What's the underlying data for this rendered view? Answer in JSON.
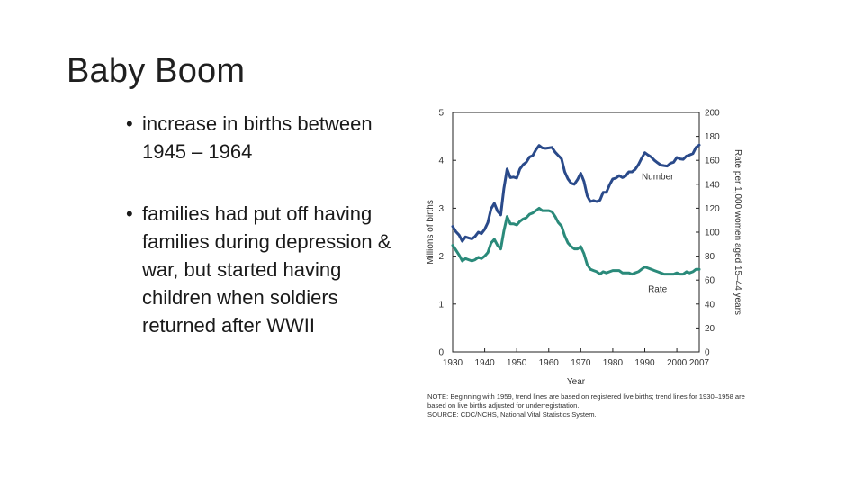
{
  "slide": {
    "title": "Baby Boom",
    "bullets": [
      "increase in births between 1945 – 1964",
      "families had put off having families during depression & war, but started having children when soldiers returned after WWII"
    ],
    "bullet_glyph": "•"
  },
  "chart_data": {
    "type": "line",
    "title": "",
    "xlabel": "Year",
    "ylabel": "Millions of births",
    "y2label": "Rate per 1,000 women aged 15–44 years",
    "xlim": [
      1930,
      2007
    ],
    "ylim": [
      0,
      5
    ],
    "y2lim": [
      0,
      200
    ],
    "x_ticks": [
      1930,
      1940,
      1950,
      1960,
      1970,
      1980,
      1990,
      2000,
      2007
    ],
    "y_ticks": [
      0,
      1,
      2,
      3,
      4,
      5
    ],
    "y2_ticks": [
      0,
      20,
      40,
      60,
      80,
      100,
      120,
      140,
      160,
      180,
      200
    ],
    "grid": false,
    "series": [
      {
        "name": "Number",
        "axis": "left",
        "color": "#2a4a8a",
        "x": [
          1930,
          1931,
          1932,
          1933,
          1934,
          1935,
          1936,
          1937,
          1938,
          1939,
          1940,
          1941,
          1942,
          1943,
          1944,
          1945,
          1946,
          1947,
          1948,
          1949,
          1950,
          1951,
          1952,
          1953,
          1954,
          1955,
          1956,
          1957,
          1958,
          1959,
          1960,
          1961,
          1962,
          1963,
          1964,
          1965,
          1966,
          1967,
          1968,
          1969,
          1970,
          1971,
          1972,
          1973,
          1974,
          1975,
          1976,
          1977,
          1978,
          1979,
          1980,
          1981,
          1982,
          1983,
          1984,
          1985,
          1986,
          1987,
          1988,
          1989,
          1990,
          1991,
          1992,
          1993,
          1994,
          1995,
          1996,
          1997,
          1998,
          1999,
          2000,
          2001,
          2002,
          2003,
          2004,
          2005,
          2006,
          2007
        ],
        "values": [
          2.62,
          2.51,
          2.44,
          2.31,
          2.4,
          2.38,
          2.36,
          2.41,
          2.5,
          2.47,
          2.56,
          2.7,
          2.99,
          3.1,
          2.94,
          2.86,
          3.41,
          3.82,
          3.64,
          3.65,
          3.63,
          3.82,
          3.91,
          3.96,
          4.07,
          4.1,
          4.22,
          4.31,
          4.26,
          4.25,
          4.26,
          4.27,
          4.17,
          4.1,
          4.03,
          3.76,
          3.61,
          3.52,
          3.5,
          3.6,
          3.73,
          3.56,
          3.26,
          3.14,
          3.16,
          3.14,
          3.17,
          3.33,
          3.33,
          3.49,
          3.61,
          3.63,
          3.68,
          3.64,
          3.67,
          3.76,
          3.76,
          3.81,
          3.91,
          4.04,
          4.16,
          4.11,
          4.07,
          4.0,
          3.95,
          3.9,
          3.89,
          3.88,
          3.94,
          3.96,
          4.06,
          4.03,
          4.02,
          4.09,
          4.11,
          4.14,
          4.27,
          4.32
        ]
      },
      {
        "name": "Rate",
        "axis": "right",
        "color": "#2a8a7a",
        "x": [
          1930,
          1931,
          1932,
          1933,
          1934,
          1935,
          1936,
          1937,
          1938,
          1939,
          1940,
          1941,
          1942,
          1943,
          1944,
          1945,
          1946,
          1947,
          1948,
          1949,
          1950,
          1951,
          1952,
          1953,
          1954,
          1955,
          1956,
          1957,
          1958,
          1959,
          1960,
          1961,
          1962,
          1963,
          1964,
          1965,
          1966,
          1967,
          1968,
          1969,
          1970,
          1971,
          1972,
          1973,
          1974,
          1975,
          1976,
          1977,
          1978,
          1979,
          1980,
          1981,
          1982,
          1983,
          1984,
          1985,
          1986,
          1987,
          1988,
          1989,
          1990,
          1991,
          1992,
          1993,
          1994,
          1995,
          1996,
          1997,
          1998,
          1999,
          2000,
          2001,
          2002,
          2003,
          2004,
          2005,
          2006,
          2007
        ],
        "values": [
          89,
          85,
          81,
          76,
          78,
          77,
          76,
          77,
          79,
          78,
          80,
          83,
          91,
          94,
          89,
          86,
          101,
          113,
          107,
          107,
          106,
          109,
          111,
          112,
          115,
          116,
          118,
          120,
          118,
          118,
          118,
          117,
          113,
          108,
          105,
          97,
          91,
          88,
          86,
          86,
          88,
          82,
          73,
          69,
          68,
          67,
          65,
          67,
          66,
          67,
          68,
          68,
          68,
          66,
          66,
          66,
          65,
          66,
          67,
          69,
          71,
          70,
          69,
          68,
          67,
          66,
          65,
          65,
          65,
          65,
          66,
          65,
          65,
          67,
          66,
          67,
          69,
          69
        ]
      }
    ],
    "annotations": [
      "Number",
      "Rate"
    ],
    "notes": [
      "NOTE: Beginning with 1959, trend lines are based on registered live births; trend lines for 1930–1958 are based on live births adjusted for underregistration.",
      "SOURCE: CDC/NCHS, National Vital Statistics System."
    ]
  }
}
